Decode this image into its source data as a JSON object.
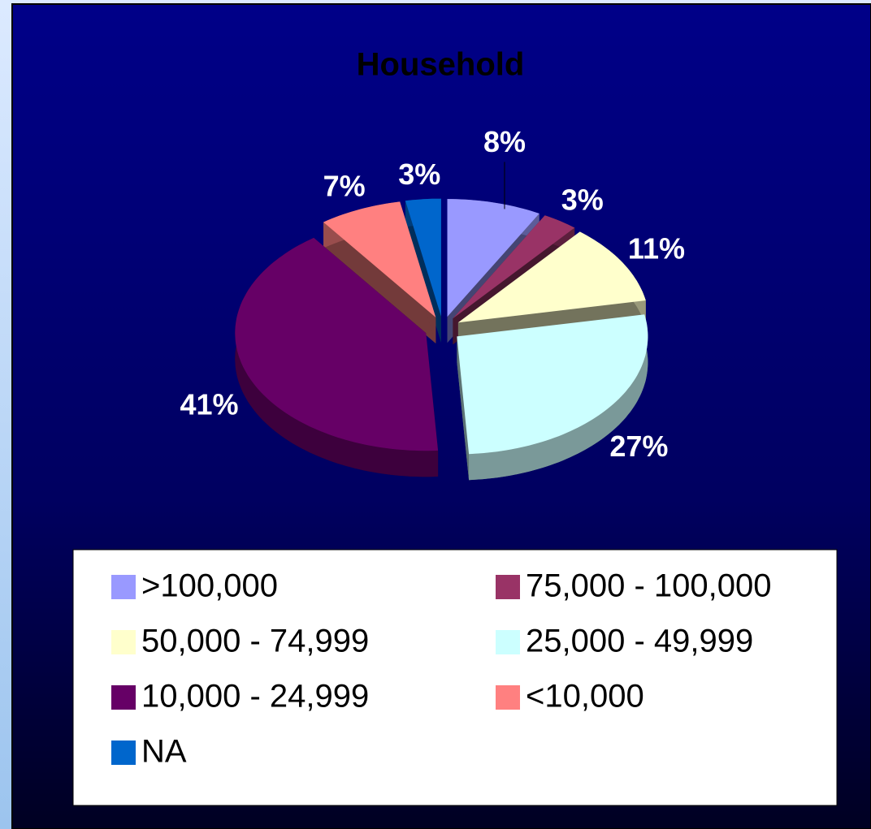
{
  "chart_data": {
    "type": "pie",
    "title": "Household",
    "categories": [
      ">100,000",
      "75,000 - 100,000",
      "50,000 - 74,999",
      "25,000 - 49,999",
      "10,000 - 24,999",
      "<10,000",
      "NA"
    ],
    "values": [
      8,
      3,
      11,
      27,
      41,
      7,
      3
    ],
    "value_labels": [
      "8%",
      "3%",
      "11%",
      "27%",
      "41%",
      "7%",
      "3%"
    ],
    "colors": [
      "#9999ff",
      "#993366",
      "#ffffcc",
      "#ccffff",
      "#660066",
      "#ff8080",
      "#0066cc"
    ]
  }
}
